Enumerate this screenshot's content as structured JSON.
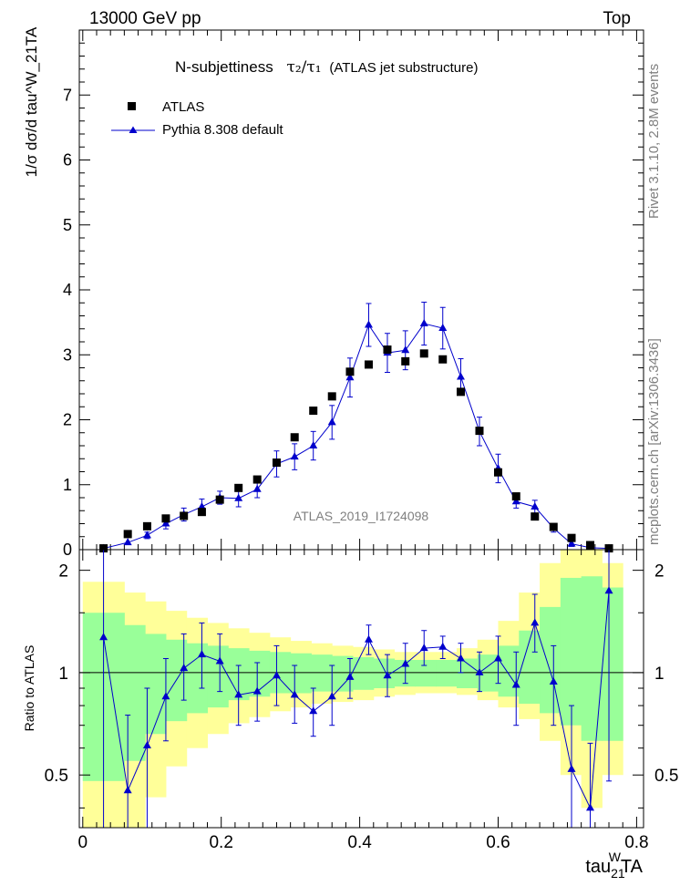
{
  "header": {
    "left": "13000 GeV pp",
    "right": "Top"
  },
  "side_labels": {
    "rivet": "Rivet 3.1.10,  2.8M events",
    "mcplots": "mcplots.cern.ch [arXiv:1306.3436]"
  },
  "chart_data": [
    {
      "type": "scatter",
      "title_main": "N-subjettiness",
      "title_taus": "τ₂/τ₁",
      "title_suffix": "(ATLAS jet substructure)",
      "watermark": "ATLAS_2019_I1724098",
      "ylabel": "1/σ dσ/d tau^W_21TA",
      "ylim": [
        0,
        8
      ],
      "yticks": [
        "0",
        "1",
        "2",
        "3",
        "4",
        "5",
        "6",
        "7"
      ],
      "legend_position": "top-left",
      "series": [
        {
          "name": "ATLAS",
          "color": "#000000",
          "marker": "square",
          "x": [
            0.03,
            0.065,
            0.093,
            0.12,
            0.146,
            0.172,
            0.198,
            0.225,
            0.252,
            0.28,
            0.306,
            0.333,
            0.36,
            0.386,
            0.413,
            0.44,
            0.466,
            0.493,
            0.52,
            0.546,
            0.573,
            0.6,
            0.626,
            0.653,
            0.68,
            0.706,
            0.733,
            0.76
          ],
          "y": [
            0.02,
            0.24,
            0.36,
            0.48,
            0.52,
            0.58,
            0.77,
            0.95,
            1.08,
            1.34,
            1.73,
            2.14,
            2.36,
            2.74,
            2.85,
            3.08,
            2.9,
            3.02,
            2.93,
            2.43,
            1.83,
            1.19,
            0.82,
            0.51,
            0.35,
            0.18,
            0.07,
            0.02
          ]
        },
        {
          "name": "Pythia 8.308 default",
          "color": "#0000cc",
          "marker": "triangle",
          "x": [
            0.03,
            0.065,
            0.093,
            0.12,
            0.146,
            0.172,
            0.198,
            0.225,
            0.252,
            0.28,
            0.306,
            0.333,
            0.36,
            0.386,
            0.413,
            0.44,
            0.466,
            0.493,
            0.52,
            0.546,
            0.573,
            0.6,
            0.626,
            0.653,
            0.68,
            0.706,
            0.733,
            0.76
          ],
          "y": [
            0.02,
            0.11,
            0.22,
            0.4,
            0.54,
            0.66,
            0.8,
            0.79,
            0.93,
            1.32,
            1.43,
            1.6,
            1.96,
            2.65,
            3.46,
            3.03,
            3.07,
            3.48,
            3.41,
            2.66,
            1.82,
            1.25,
            0.74,
            0.66,
            0.33,
            0.09,
            0.03,
            0.02
          ],
          "err": [
            0.02,
            0.03,
            0.05,
            0.08,
            0.1,
            0.12,
            0.1,
            0.13,
            0.13,
            0.2,
            0.2,
            0.22,
            0.26,
            0.3,
            0.33,
            0.3,
            0.3,
            0.33,
            0.32,
            0.28,
            0.22,
            0.22,
            0.1,
            0.1,
            0.06,
            0.04,
            0.02,
            0.01
          ]
        }
      ]
    },
    {
      "type": "scatter",
      "ylabel": "Ratio to ATLAS",
      "xlabel_main": "tau",
      "xlabel_sub": "21",
      "xlabel_sup": "W",
      "xlabel_tail": "TA",
      "xlim": [
        -0.005,
        0.81
      ],
      "xticks": [
        "0",
        "0.2",
        "0.4",
        "0.6",
        "0.8"
      ],
      "ylim": [
        0.35,
        2.3
      ],
      "yticks": [
        "0.5",
        "1",
        "2"
      ],
      "reference_line": 1,
      "band_colors": {
        "inner": "#99ff99",
        "outer": "#ffff99"
      },
      "bins": [
        0,
        0.03,
        0.06,
        0.09,
        0.12,
        0.15,
        0.18,
        0.21,
        0.24,
        0.27,
        0.3,
        0.33,
        0.36,
        0.39,
        0.42,
        0.45,
        0.48,
        0.51,
        0.54,
        0.57,
        0.6,
        0.63,
        0.66,
        0.69,
        0.72,
        0.75,
        0.78
      ],
      "band_inner_lo": [
        0.48,
        0.48,
        0.55,
        0.66,
        0.72,
        0.76,
        0.79,
        0.83,
        0.85,
        0.87,
        0.87,
        0.88,
        0.88,
        0.89,
        0.9,
        0.91,
        0.91,
        0.91,
        0.9,
        0.88,
        0.85,
        0.81,
        0.76,
        0.7,
        0.63,
        0.63
      ],
      "band_inner_hi": [
        1.5,
        1.5,
        1.38,
        1.3,
        1.25,
        1.22,
        1.2,
        1.18,
        1.16,
        1.15,
        1.14,
        1.13,
        1.12,
        1.11,
        1.1,
        1.09,
        1.09,
        1.09,
        1.1,
        1.13,
        1.2,
        1.33,
        1.56,
        1.9,
        1.92,
        1.78
      ],
      "band_outer_lo": [
        0.3,
        0.3,
        0.33,
        0.43,
        0.53,
        0.6,
        0.66,
        0.71,
        0.74,
        0.77,
        0.79,
        0.81,
        0.82,
        0.83,
        0.85,
        0.86,
        0.87,
        0.87,
        0.86,
        0.83,
        0.79,
        0.73,
        0.63,
        0.5,
        0.4,
        0.5
      ],
      "band_outer_hi": [
        1.85,
        1.85,
        1.72,
        1.62,
        1.52,
        1.45,
        1.4,
        1.35,
        1.31,
        1.27,
        1.24,
        1.22,
        1.2,
        1.19,
        1.17,
        1.15,
        1.15,
        1.15,
        1.18,
        1.25,
        1.42,
        1.72,
        2.1,
        2.4,
        2.4,
        2.1
      ],
      "series": [
        {
          "name": "Pythia 8.308 default",
          "color": "#0000cc",
          "x": [
            0.03,
            0.065,
            0.093,
            0.12,
            0.146,
            0.172,
            0.198,
            0.225,
            0.252,
            0.28,
            0.306,
            0.333,
            0.36,
            0.386,
            0.413,
            0.44,
            0.466,
            0.493,
            0.52,
            0.546,
            0.573,
            0.6,
            0.626,
            0.653,
            0.68,
            0.706,
            0.733,
            0.76
          ],
          "y": [
            1.27,
            0.45,
            0.61,
            0.85,
            1.03,
            1.13,
            1.08,
            0.86,
            0.88,
            0.98,
            0.86,
            0.77,
            0.85,
            0.97,
            1.25,
            0.98,
            1.06,
            1.18,
            1.19,
            1.1,
            1.0,
            1.1,
            0.92,
            1.4,
            0.94,
            0.52,
            0.4,
            1.74
          ],
          "err_hi": [
            2.3,
            0.75,
            0.9,
            1.1,
            1.3,
            1.4,
            1.3,
            1.05,
            1.07,
            1.2,
            1.05,
            0.9,
            1.05,
            1.1,
            1.38,
            1.13,
            1.22,
            1.33,
            1.28,
            1.22,
            1.15,
            1.28,
            1.15,
            1.7,
            1.2,
            0.8,
            0.62,
            2.3
          ],
          "err_lo": [
            0.35,
            0.35,
            0.35,
            0.63,
            0.83,
            0.9,
            0.88,
            0.7,
            0.72,
            0.8,
            0.71,
            0.65,
            0.7,
            0.84,
            1.13,
            0.85,
            0.93,
            1.05,
            1.1,
            1.0,
            0.88,
            0.93,
            0.7,
            1.15,
            0.7,
            0.35,
            0.35,
            0.48
          ]
        }
      ]
    }
  ]
}
